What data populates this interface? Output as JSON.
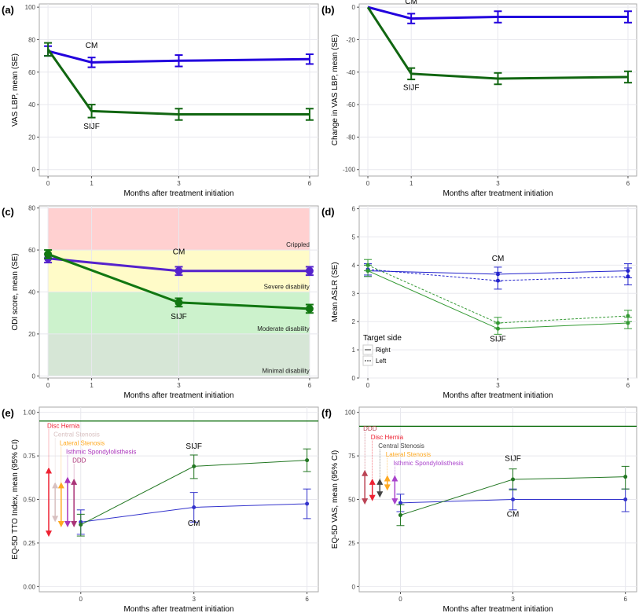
{
  "chart_data": [
    {
      "panel": "(a)",
      "type": "line",
      "ylabel": "VAS LBP, mean (SE)",
      "xlabel": "Months after treatment initiation",
      "xlim": [
        -0.2,
        6.2
      ],
      "ylim": [
        -4,
        102
      ],
      "xticks": [
        0,
        1,
        3,
        6
      ],
      "yticks": [
        0,
        20,
        40,
        60,
        80,
        100
      ],
      "grid": true,
      "series": [
        {
          "name": "CM",
          "color": "#2200dd",
          "width": 3,
          "x": [
            0,
            1,
            3,
            6
          ],
          "y": [
            73,
            66,
            67,
            68
          ],
          "err": [
            3,
            3,
            3.5,
            3
          ]
        },
        {
          "name": "SIJF",
          "color": "#116611",
          "width": 3,
          "x": [
            0,
            1,
            3,
            6
          ],
          "y": [
            74,
            36,
            34,
            34
          ],
          "err": [
            4,
            4,
            3.5,
            3.5
          ]
        }
      ],
      "labels": [
        {
          "text": "CM",
          "x": 1,
          "y": 75
        },
        {
          "text": "SIJF",
          "x": 1,
          "y": 25
        }
      ]
    },
    {
      "panel": "(b)",
      "type": "line",
      "ylabel": "Change in VAS LBP, mean (SE)",
      "xlabel": "Months after treatment initiation",
      "xlim": [
        -0.2,
        6.2
      ],
      "ylim": [
        -104,
        2
      ],
      "xticks": [
        0,
        1,
        3,
        6
      ],
      "yticks": [
        0,
        -20,
        -40,
        -60,
        -80,
        -100
      ],
      "grid": true,
      "series": [
        {
          "name": "CM",
          "color": "#2200dd",
          "width": 3,
          "x": [
            0,
            1,
            3,
            6
          ],
          "y": [
            0,
            -7,
            -6,
            -6
          ],
          "err": [
            0,
            3,
            3.5,
            3.5
          ]
        },
        {
          "name": "SIJF",
          "color": "#116611",
          "width": 3,
          "x": [
            0,
            1,
            3,
            6
          ],
          "y": [
            0,
            -41,
            -44,
            -43
          ],
          "err": [
            0,
            3.5,
            3.5,
            3.5
          ]
        }
      ],
      "labels": [
        {
          "text": "CM",
          "x": 1,
          "y": 2
        },
        {
          "text": "SIJF",
          "x": 1,
          "y": -51
        }
      ]
    },
    {
      "panel": "(c)",
      "type": "line",
      "ylabel": "ODI score, mean (SE)",
      "xlabel": "Months after treatment initiation",
      "xlim": [
        -0.2,
        6.2
      ],
      "ylim": [
        -1,
        81
      ],
      "xticks": [
        0,
        1,
        3,
        6
      ],
      "yticks": [
        0,
        20,
        40,
        60,
        80
      ],
      "grid": true,
      "bands": [
        {
          "from": 60,
          "to": 80,
          "color": "#ffd0d0",
          "label": "Crippled"
        },
        {
          "from": 40,
          "to": 60,
          "color": "#fffbc8",
          "label": "Severe disability"
        },
        {
          "from": 20,
          "to": 40,
          "color": "#ccf2cc",
          "label": "Moderate disability"
        },
        {
          "from": 0,
          "to": 20,
          "color": "#d6e6d6",
          "label": "Minimal disability"
        }
      ],
      "series": [
        {
          "name": "CM",
          "color": "#5522cc",
          "width": 3,
          "x": [
            0,
            3,
            6
          ],
          "y": [
            56,
            50,
            50
          ],
          "err": [
            2,
            2,
            2
          ],
          "marker": 5
        },
        {
          "name": "SIJF",
          "color": "#117711",
          "width": 3,
          "x": [
            0,
            3,
            6
          ],
          "y": [
            58,
            35,
            32
          ],
          "err": [
            2,
            2,
            2
          ],
          "marker": 5
        }
      ],
      "labels": [
        {
          "text": "CM",
          "x": 3,
          "y": 58
        },
        {
          "text": "SIJF",
          "x": 3,
          "y": 27
        }
      ]
    },
    {
      "panel": "(d)",
      "type": "line",
      "ylabel": "Mean ASLR (SE)",
      "xlabel": "Months after treatment initiation",
      "xlim": [
        -0.2,
        6.2
      ],
      "ylim": [
        0,
        6.1
      ],
      "xticks": [
        0,
        3,
        6
      ],
      "yticks": [
        0,
        1,
        2,
        3,
        4,
        5,
        6
      ],
      "grid": true,
      "legend": {
        "title": "Target side",
        "entries": [
          "Right",
          "Left"
        ],
        "placement": "bottom-left"
      },
      "series": [
        {
          "name": "CM Right",
          "color": "#2222cc",
          "width": 1,
          "x": [
            0,
            3,
            6
          ],
          "y": [
            3.8,
            3.68,
            3.8
          ],
          "err": [
            0.2,
            0.25,
            0.25
          ],
          "marker": 2.5
        },
        {
          "name": "CM Left",
          "color": "#2222cc",
          "width": 1,
          "dash": true,
          "x": [
            0,
            3,
            6
          ],
          "y": [
            3.85,
            3.45,
            3.6
          ],
          "err": [
            0.2,
            0.3,
            0.3
          ],
          "marker": 2.5
        },
        {
          "name": "SIJF Right",
          "color": "#339933",
          "width": 1,
          "x": [
            0,
            3,
            6
          ],
          "y": [
            3.8,
            1.75,
            1.95
          ],
          "err": [
            0.2,
            0.2,
            0.2
          ],
          "marker": 2.5
        },
        {
          "name": "SIJF Left",
          "color": "#339933",
          "width": 1,
          "dash": true,
          "x": [
            0,
            3,
            6
          ],
          "y": [
            4.0,
            1.95,
            2.2
          ],
          "err": [
            0.2,
            0.2,
            0.2
          ],
          "marker": 2.5
        }
      ],
      "labels": [
        {
          "text": "CM",
          "x": 3,
          "y": 4.15
        },
        {
          "text": "SIJF",
          "x": 3,
          "y": 1.3
        }
      ]
    },
    {
      "panel": "(e)",
      "type": "line",
      "ylabel": "EQ-5D TTO Index, mean (95% CI)",
      "xlabel": "Months after treatment initiation",
      "xlim": [
        -1.1,
        6.3
      ],
      "ylim": [
        -0.03,
        1.03
      ],
      "xticks": [
        0,
        3,
        6
      ],
      "yticks": [
        0,
        0.25,
        0.5,
        0.75,
        1
      ],
      "ytickfmt": 2,
      "grid": true,
      "refline": {
        "y": 0.95,
        "color": "#006600"
      },
      "series": [
        {
          "name": "CM",
          "color": "#3333cc",
          "width": 1,
          "x": [
            0,
            3,
            6
          ],
          "y": [
            0.37,
            0.455,
            0.475
          ],
          "lo": [
            0.3,
            0.37,
            0.39
          ],
          "hi": [
            0.44,
            0.54,
            0.56
          ],
          "marker": 2.5
        },
        {
          "name": "SIJF",
          "color": "#227722",
          "width": 1,
          "x": [
            0,
            3,
            6
          ],
          "y": [
            0.355,
            0.69,
            0.725
          ],
          "lo": [
            0.29,
            0.62,
            0.66
          ],
          "hi": [
            0.415,
            0.755,
            0.79
          ],
          "marker": 2.5
        }
      ],
      "labels": [
        {
          "text": "SIJF",
          "x": 3,
          "y": 0.79
        },
        {
          "text": "CM",
          "x": 3,
          "y": 0.35
        }
      ],
      "arrows": [
        {
          "text": "Disc Hernia",
          "x": -0.85,
          "from": 0.285,
          "to": 0.685,
          "color": "#ee2233"
        },
        {
          "text": "Central Stenosis",
          "x": -0.68,
          "from": 0.37,
          "to": 0.6,
          "color": "#d8c0c0"
        },
        {
          "text": "Lateral Stenosis",
          "x": -0.52,
          "from": 0.34,
          "to": 0.6,
          "color": "#ffaa22"
        },
        {
          "text": "Isthmic Spondylolisthesis",
          "x": -0.35,
          "from": 0.34,
          "to": 0.63,
          "color": "#aa33bb"
        },
        {
          "text": "DDD",
          "x": -0.18,
          "from": 0.34,
          "to": 0.62,
          "color": "#aa3377"
        }
      ]
    },
    {
      "panel": "(f)",
      "type": "line",
      "ylabel": "EQ-5D VAS, mean (95% CI)",
      "xlabel": "Months after treatment initiation",
      "xlim": [
        -1.1,
        6.3
      ],
      "ylim": [
        -3,
        103
      ],
      "xticks": [
        0,
        3,
        6
      ],
      "yticks": [
        0,
        25,
        50,
        75,
        100
      ],
      "grid": true,
      "refline": {
        "y": 92,
        "color": "#006600"
      },
      "series": [
        {
          "name": "CM",
          "color": "#3333cc",
          "width": 1,
          "x": [
            0,
            3,
            6
          ],
          "y": [
            48,
            50,
            50
          ],
          "lo": [
            43,
            44,
            43
          ],
          "hi": [
            53,
            56,
            56
          ],
          "marker": 2.5
        },
        {
          "name": "SIJF",
          "color": "#227722",
          "width": 1,
          "x": [
            0,
            3,
            6
          ],
          "y": [
            41,
            61.5,
            63
          ],
          "lo": [
            35,
            55.5,
            56
          ],
          "hi": [
            47,
            67.5,
            69
          ],
          "marker": 2.5
        }
      ],
      "labels": [
        {
          "text": "SIJF",
          "x": 3,
          "y": 72
        },
        {
          "text": "CM",
          "x": 3,
          "y": 40
        }
      ],
      "arrows": [
        {
          "text": "DDD",
          "x": -0.95,
          "from": 47,
          "to": 67,
          "color": "#bb4455"
        },
        {
          "text": "Disc Hernia",
          "x": -0.75,
          "from": 49,
          "to": 62,
          "color": "#ee2233"
        },
        {
          "text": "Central Stenosis",
          "x": -0.55,
          "from": 51,
          "to": 62,
          "color": "#444444"
        },
        {
          "text": "Lateral Stenosis",
          "x": -0.35,
          "from": 55,
          "to": 64,
          "color": "#ffaa22"
        },
        {
          "text": "Isthmic Spondylolisthesis",
          "x": -0.15,
          "from": 47,
          "to": 64,
          "color": "#aa44cc"
        }
      ]
    }
  ]
}
